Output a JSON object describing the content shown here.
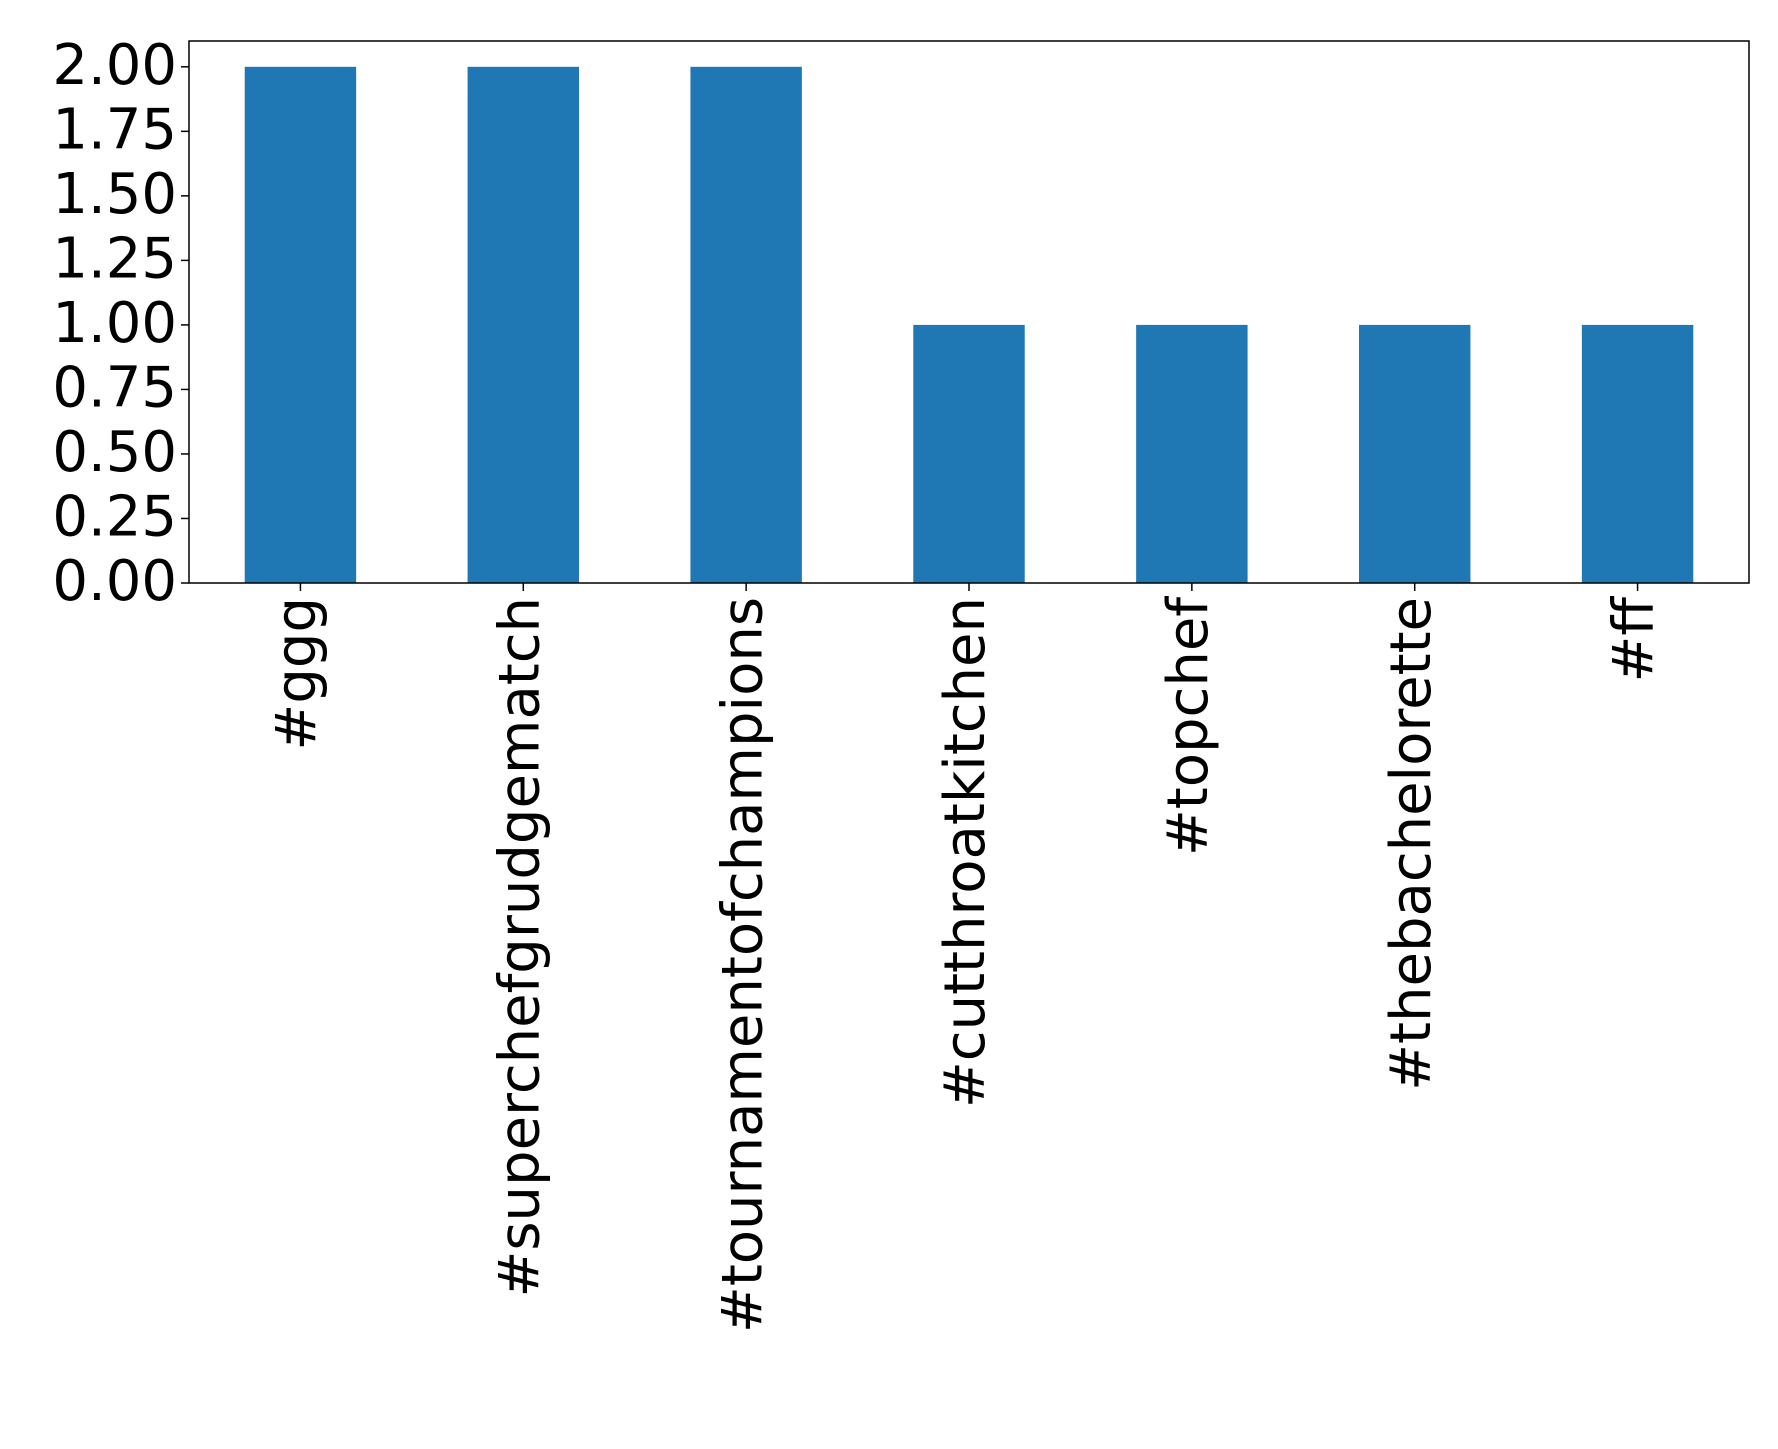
{
  "chart_data": {
    "type": "bar",
    "categories": [
      "#ggg",
      "#superchefgrudgematch",
      "#tournamentofchampions",
      "#cutthroatkitchen",
      "#topchef",
      "#thebachelorette",
      "#ff"
    ],
    "values": [
      2,
      2,
      2,
      1,
      1,
      1,
      1
    ],
    "color": "#1f77b4",
    "ylim": [
      0,
      2.1
    ],
    "yticks": [
      {
        "value": 0,
        "label": "0.00"
      },
      {
        "value": 0.25,
        "label": "0.25"
      },
      {
        "value": 0.5,
        "label": "0.50"
      },
      {
        "value": 0.75,
        "label": "0.75"
      },
      {
        "value": 1,
        "label": "1.00"
      },
      {
        "value": 1.25,
        "label": "1.25"
      },
      {
        "value": 1.5,
        "label": "1.50"
      },
      {
        "value": 1.75,
        "label": "1.75"
      },
      {
        "value": 2,
        "label": "2.00"
      }
    ],
    "grid": false
  }
}
